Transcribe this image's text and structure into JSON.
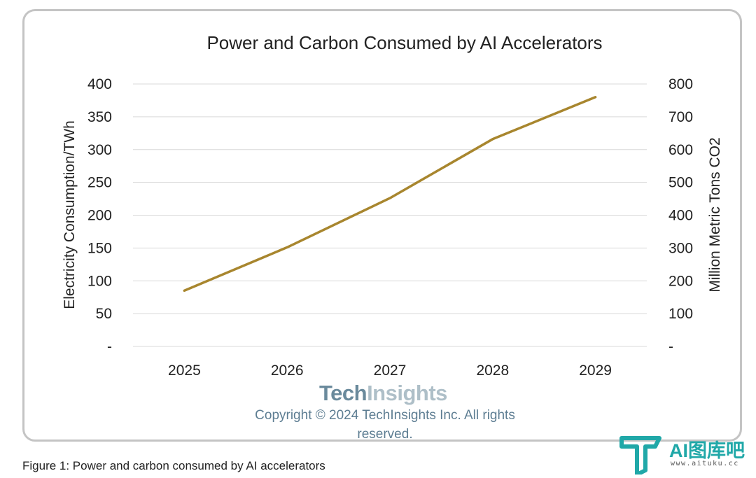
{
  "chart_data": {
    "type": "line",
    "title": "Power and Carbon Consumed by AI Accelerators",
    "categories": [
      "2025",
      "2026",
      "2027",
      "2028",
      "2029"
    ],
    "series": [
      {
        "name": "",
        "values": [
          85,
          151,
          226,
          316,
          380
        ],
        "color": "#a8862e"
      }
    ],
    "ylabel": "Electricity Consumption/TWh",
    "ylim": [
      0,
      400
    ],
    "yticks": [
      "-",
      "50",
      "100",
      "150",
      "200",
      "250",
      "300",
      "350",
      "400"
    ],
    "y2label": "Million Metric Tons CO2",
    "y2lim": [
      0,
      800
    ],
    "y2ticks": [
      "-",
      "100",
      "200",
      "300",
      "400",
      "500",
      "600",
      "700",
      "800"
    ],
    "grid": true
  },
  "brand": {
    "part1": "Tech",
    "part2": "Insights"
  },
  "copyright_lines": [
    "Copyright © 2024 TechInsights Inc.  All rights",
    "reserved."
  ],
  "caption": "Figure 1: Power and carbon consumed by AI accelerators",
  "watermark": {
    "text": "AI图库吧",
    "url": "www.aituku.cc",
    "color": "#20a8a8"
  }
}
